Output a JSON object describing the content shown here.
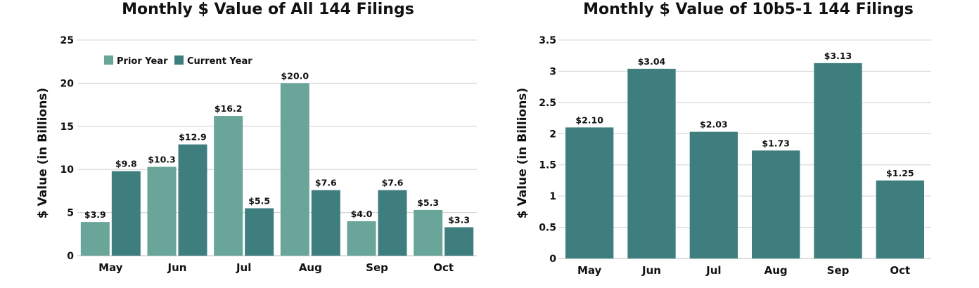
{
  "chart_data": [
    {
      "type": "bar",
      "title": "Monthly $ Value of All 144 Filings",
      "ylabel": "$ Value (in Billions)",
      "xlabel": "",
      "categories": [
        "May",
        "Jun",
        "Jul",
        "Aug",
        "Sep",
        "Oct"
      ],
      "ylim": [
        0,
        25
      ],
      "yticks": [
        "0",
        "5",
        "10",
        "15",
        "20",
        "25"
      ],
      "ytick_values": [
        0,
        5,
        10,
        15,
        20,
        25
      ],
      "grid": true,
      "legend": "top-left",
      "series": [
        {
          "name": "Prior Year",
          "color": "#6aa59a",
          "values": [
            3.9,
            10.3,
            16.2,
            20.0,
            4.0,
            5.3
          ],
          "labels": [
            "$3.9",
            "$10.3",
            "$16.2",
            "$20.0",
            "$4.0",
            "$5.3"
          ]
        },
        {
          "name": "Current Year",
          "color": "#3f7e7e",
          "values": [
            9.8,
            12.9,
            5.5,
            7.6,
            7.6,
            3.3
          ],
          "labels": [
            "$9.8",
            "$12.9",
            "$5.5",
            "$7.6",
            "$7.6",
            "$3.3"
          ]
        }
      ]
    },
    {
      "type": "bar",
      "title": "Monthly $ Value of 10b5-1 144 Filings",
      "ylabel": "$ Value (in Billions)",
      "xlabel": "",
      "categories": [
        "May",
        "Jun",
        "Jul",
        "Aug",
        "Sep",
        "Oct"
      ],
      "ylim": [
        0,
        3.5
      ],
      "yticks": [
        "0",
        "0.5",
        "1",
        "1.5",
        "2",
        "2.5",
        "3",
        "3.5"
      ],
      "ytick_values": [
        0,
        0.5,
        1,
        1.5,
        2,
        2.5,
        3,
        3.5
      ],
      "grid": true,
      "series": [
        {
          "color": "#3f7e7e",
          "values": [
            2.1,
            3.04,
            2.03,
            1.73,
            3.13,
            1.25
          ],
          "labels": [
            "$2.10",
            "$3.04",
            "$2.03",
            "$1.73",
            "$3.13",
            "$1.25"
          ]
        }
      ]
    }
  ]
}
